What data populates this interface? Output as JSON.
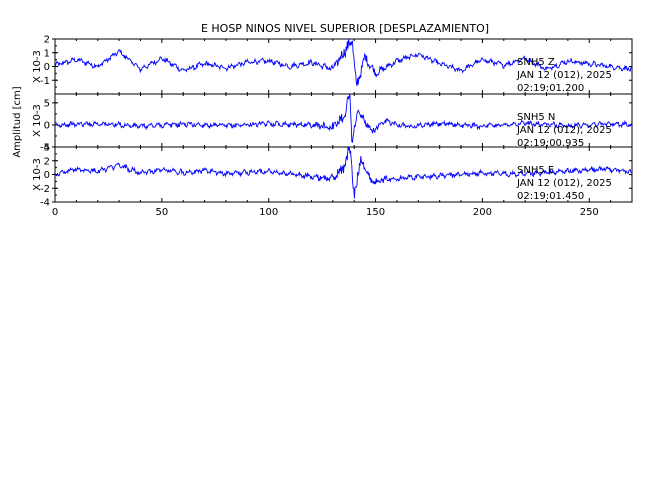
{
  "title": "E HOSP NINOS NIVEL SUPERIOR [DESPLAZAMIENTO]",
  "ylabel_common": "Amplitud [cm]",
  "trace_color": "#0000ff",
  "axis_color": "#000000",
  "chart_data": [
    {
      "type": "line",
      "station": "SNH5",
      "component": "Z",
      "date_label": "JAN 12 (012), 2025",
      "start_time": "02:19:01.200",
      "ylabel": "X 10-3",
      "ylim": [
        -2,
        2
      ],
      "yticks": [
        -1,
        0,
        1,
        2
      ],
      "xlim": [
        0,
        270
      ],
      "event_x": 139,
      "series": [
        {
          "values": [
            [
              0,
              0.1
            ],
            [
              10,
              0.5
            ],
            [
              20,
              0.0
            ],
            [
              30,
              1.1
            ],
            [
              40,
              -0.2
            ],
            [
              50,
              0.6
            ],
            [
              60,
              -0.3
            ],
            [
              70,
              0.2
            ],
            [
              80,
              -0.1
            ],
            [
              90,
              0.3
            ],
            [
              100,
              0.4
            ],
            [
              110,
              0.0
            ],
            [
              120,
              0.3
            ],
            [
              130,
              -0.2
            ],
            [
              135,
              1.0
            ],
            [
              139,
              2.0
            ],
            [
              141,
              -1.5
            ],
            [
              145,
              0.7
            ],
            [
              150,
              -0.5
            ],
            [
              160,
              0.4
            ],
            [
              170,
              0.9
            ],
            [
              180,
              0.2
            ],
            [
              190,
              -0.3
            ],
            [
              200,
              0.5
            ],
            [
              210,
              0.1
            ],
            [
              220,
              0.6
            ],
            [
              230,
              -0.2
            ],
            [
              240,
              0.4
            ],
            [
              250,
              0.2
            ],
            [
              260,
              0.0
            ],
            [
              270,
              -0.2
            ]
          ]
        }
      ]
    },
    {
      "type": "line",
      "station": "SNH5",
      "component": "N",
      "date_label": "JAN 12 (012), 2025",
      "start_time": "02:19:00.935",
      "ylabel": "X 10-3",
      "ylim": [
        -5,
        7
      ],
      "yticks": [
        -5,
        0,
        5
      ],
      "xlim": [
        0,
        270
      ],
      "event_x": 138,
      "series": [
        {
          "values": [
            [
              0,
              0.0
            ],
            [
              20,
              0.3
            ],
            [
              40,
              -0.3
            ],
            [
              60,
              0.2
            ],
            [
              80,
              -0.2
            ],
            [
              100,
              0.3
            ],
            [
              120,
              0.0
            ],
            [
              130,
              -0.5
            ],
            [
              135,
              2.0
            ],
            [
              138,
              6.5
            ],
            [
              139,
              -3.0
            ],
            [
              142,
              3.0
            ],
            [
              148,
              -1.5
            ],
            [
              155,
              0.8
            ],
            [
              165,
              -0.3
            ],
            [
              180,
              0.3
            ],
            [
              200,
              -0.3
            ],
            [
              220,
              0.4
            ],
            [
              240,
              -0.2
            ],
            [
              260,
              0.3
            ],
            [
              270,
              0.0
            ]
          ]
        }
      ]
    },
    {
      "type": "line",
      "station": "SNH5",
      "component": "E",
      "date_label": "JAN 12 (012), 2025",
      "start_time": "02:19:01.450",
      "ylabel": "X 10-3",
      "ylim": [
        -4,
        4
      ],
      "yticks": [
        -4,
        -2,
        0,
        2,
        4
      ],
      "xlim": [
        0,
        270
      ],
      "xticks": [
        0,
        50,
        100,
        150,
        200,
        250
      ],
      "event_x": 138,
      "series": [
        {
          "values": [
            [
              0,
              0.0
            ],
            [
              10,
              0.8
            ],
            [
              20,
              0.5
            ],
            [
              30,
              1.3
            ],
            [
              40,
              0.2
            ],
            [
              50,
              0.7
            ],
            [
              60,
              0.3
            ],
            [
              70,
              0.6
            ],
            [
              80,
              0.1
            ],
            [
              100,
              0.5
            ],
            [
              120,
              -0.3
            ],
            [
              130,
              -0.6
            ],
            [
              135,
              1.0
            ],
            [
              138,
              4.0
            ],
            [
              140,
              -3.5
            ],
            [
              143,
              2.5
            ],
            [
              148,
              -1.0
            ],
            [
              160,
              -0.5
            ],
            [
              180,
              -0.2
            ],
            [
              200,
              0.2
            ],
            [
              220,
              0.0
            ],
            [
              240,
              0.5
            ],
            [
              260,
              0.8
            ],
            [
              270,
              0.3
            ]
          ]
        }
      ]
    }
  ]
}
